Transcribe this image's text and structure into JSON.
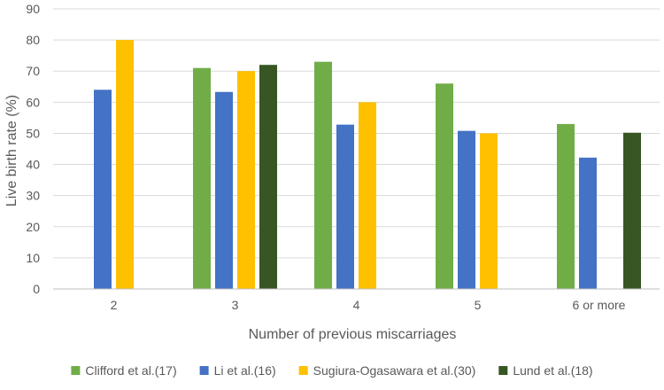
{
  "chart_data": {
    "type": "bar",
    "title": "",
    "xlabel": "Number of previous miscarriages",
    "ylabel": "Live birth rate (%)",
    "ylim": [
      0,
      90
    ],
    "yticks": [
      0,
      10,
      20,
      30,
      40,
      50,
      60,
      70,
      80,
      90
    ],
    "grid": true,
    "legend_position": "bottom",
    "categories": [
      "2",
      "3",
      "4",
      "5",
      "6 or more"
    ],
    "series": [
      {
        "name": "Clifford et al.(17)",
        "color": "#70ad47",
        "values": [
          null,
          71,
          73,
          66,
          53
        ]
      },
      {
        "name": "Li et al.(16)",
        "color": "#4472c4",
        "values": [
          64,
          63.3,
          52.8,
          50.8,
          42.2
        ]
      },
      {
        "name": "Sugiura-Ogasawara et al.(30)",
        "color": "#ffc000",
        "values": [
          80,
          70,
          60,
          50,
          null
        ]
      },
      {
        "name": "Lund et al.(18)",
        "color": "#375623",
        "values": [
          null,
          72,
          null,
          null,
          50.2
        ]
      }
    ]
  }
}
